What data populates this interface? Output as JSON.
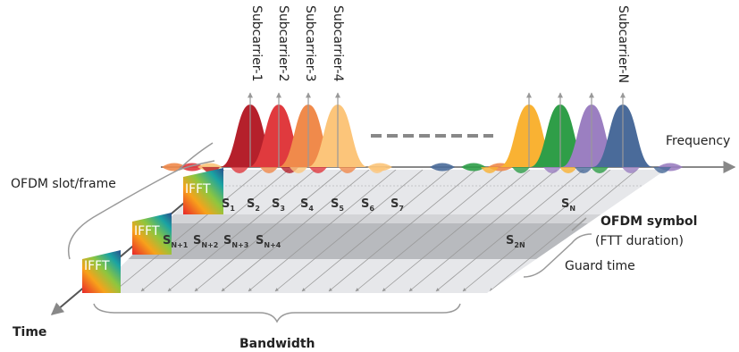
{
  "subcarriers": [
    "Subcarrier-1",
    "Subcarrier-2",
    "Subcarrier-3",
    "Subcarrier-4",
    "Subcarrier-N"
  ],
  "axes": {
    "frequency": "Frequency",
    "time": "Time"
  },
  "frame_label": "OFDM slot/frame",
  "ifft": [
    "IFFT",
    "IFFT",
    "IFFT"
  ],
  "symbols_row1": [
    {
      "base": "S",
      "sub": "1"
    },
    {
      "base": "S",
      "sub": "2"
    },
    {
      "base": "S",
      "sub": "3"
    },
    {
      "base": "S",
      "sub": "4"
    },
    {
      "base": "S",
      "sub": "5"
    },
    {
      "base": "S",
      "sub": "6"
    },
    {
      "base": "S",
      "sub": "7"
    },
    {
      "base": "S",
      "sub": "N"
    }
  ],
  "symbols_row2": [
    {
      "base": "S",
      "sub": "N+1"
    },
    {
      "base": "S",
      "sub": "N+2"
    },
    {
      "base": "S",
      "sub": "N+3"
    },
    {
      "base": "S",
      "sub": "N+4"
    },
    {
      "base": "S",
      "sub": "2N"
    }
  ],
  "symbol_label": {
    "title": "OFDM symbol",
    "subtitle": "(FTT duration)"
  },
  "guard_time": "Guard time",
  "bandwidth": "Bandwidth"
}
